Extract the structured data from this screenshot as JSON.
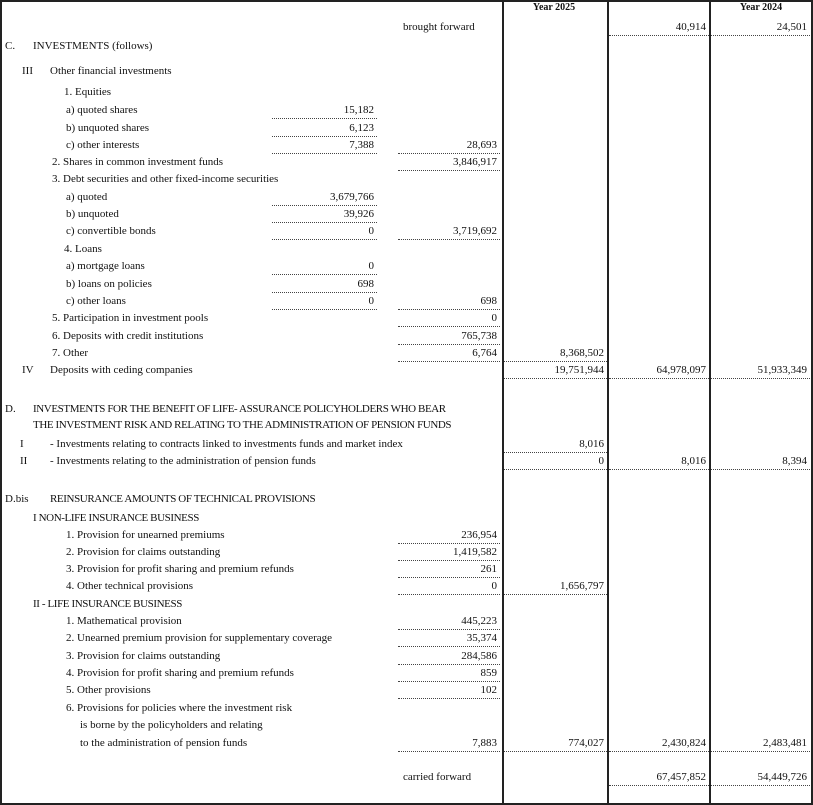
{
  "header": {
    "year_current": "Year 2025",
    "year_previous": "Year 2024"
  },
  "rows": [
    {
      "num": "",
      "text": "brought forward",
      "d": "40,914",
      "e": "24,501"
    },
    {
      "num": "C.",
      "text": "INVESTMENTS  (follows)"
    },
    {
      "num": "III",
      "text": "Other financial investments"
    },
    {
      "num": "",
      "text": "1. Equities"
    },
    {
      "num": "",
      "text": "a)  quoted shares",
      "a": "15,182"
    },
    {
      "num": "",
      "text": "b)  unquoted shares",
      "a": "6,123"
    },
    {
      "num": "",
      "text": "c)  other interests",
      "a": "7,388",
      "b": "28,693"
    },
    {
      "num": "",
      "text": "2. Shares in common investment funds",
      "b": "3,846,917"
    },
    {
      "num": "",
      "text": "3. Debt securities and other fixed-income securities"
    },
    {
      "num": "",
      "text": "a)  quoted",
      "a": "3,679,766"
    },
    {
      "num": "",
      "text": "b)  unquoted",
      "a": "39,926"
    },
    {
      "num": "",
      "text": "c)  convertible bonds",
      "a": "0",
      "b": "3,719,692"
    },
    {
      "num": "",
      "text": "4. Loans"
    },
    {
      "num": "",
      "text": "a)  mortgage loans",
      "a": "0"
    },
    {
      "num": "",
      "text": "b)  loans on policies",
      "a": "698"
    },
    {
      "num": "",
      "text": "c)  other loans",
      "a": "0",
      "b": "698"
    },
    {
      "num": "",
      "text": "5. Participation in investment pools",
      "b": "0"
    },
    {
      "num": "",
      "text": "6. Deposits with credit institutions",
      "b": "765,738"
    },
    {
      "num": "",
      "text": "7. Other",
      "b": "6,764",
      "c": "8,368,502"
    },
    {
      "num": "IV",
      "text": "Deposits with ceding companies",
      "c": "19,751,944",
      "d": "64,978,097",
      "e": "51,933,349"
    },
    {
      "num": "D.",
      "text": "INVESTMENTS FOR THE BENEFIT OF LIFE- ASSURANCE POLICYHOLDERS WHO BEAR"
    },
    {
      "num": "",
      "text": "THE INVESTMENT RISK AND RELATING TO THE ADMINISTRATION OF PENSION FUNDS"
    },
    {
      "num": "I",
      "text": "- Investments relating to contracts linked to investments funds and market index",
      "c": "8,016"
    },
    {
      "num": "II",
      "text": "- Investments relating to the administration of pension funds",
      "c": "0",
      "d": "8,016",
      "e": "8,394"
    },
    {
      "num": "D.bis",
      "text": "REINSURANCE AMOUNTS OF TECHNICAL PROVISIONS"
    },
    {
      "num": "",
      "text": "I  NON-LIFE INSURANCE BUSINESS"
    },
    {
      "num": "",
      "text": "1.  Provision for unearned premiums",
      "b": "236,954"
    },
    {
      "num": "",
      "text": "2.  Provision for claims outstanding",
      "b": "1,419,582"
    },
    {
      "num": "",
      "text": "3.  Provision for profit sharing and premium refunds",
      "b": "261"
    },
    {
      "num": "",
      "text": "4.  Other technical provisions",
      "b": "0",
      "c": "1,656,797"
    },
    {
      "num": "",
      "text": "II - LIFE INSURANCE BUSINESS"
    },
    {
      "num": "",
      "text": "1.   Mathematical provision",
      "b": "445,223"
    },
    {
      "num": "",
      "text": "2.   Unearned premium provision for supplementary coverage",
      "b": "35,374"
    },
    {
      "num": "",
      "text": "3.   Provision for claims outstanding",
      "b": "284,586"
    },
    {
      "num": "",
      "text": "4.  Provision for profit sharing and premium refunds",
      "b": "859"
    },
    {
      "num": "",
      "text": "5.   Other provisions",
      "b": "102"
    },
    {
      "num": "",
      "text": "6.  Provisions for policies where the investment risk"
    },
    {
      "num": "",
      "text": "is borne by the policyholders and relating"
    },
    {
      "num": "",
      "text": "to the administration of pension funds",
      "b": "7,883",
      "c": "774,027",
      "d": "2,430,824",
      "e": "2,483,481"
    },
    {
      "num": "",
      "text": "carried forward",
      "d": "67,457,852",
      "e": "54,449,726"
    }
  ]
}
